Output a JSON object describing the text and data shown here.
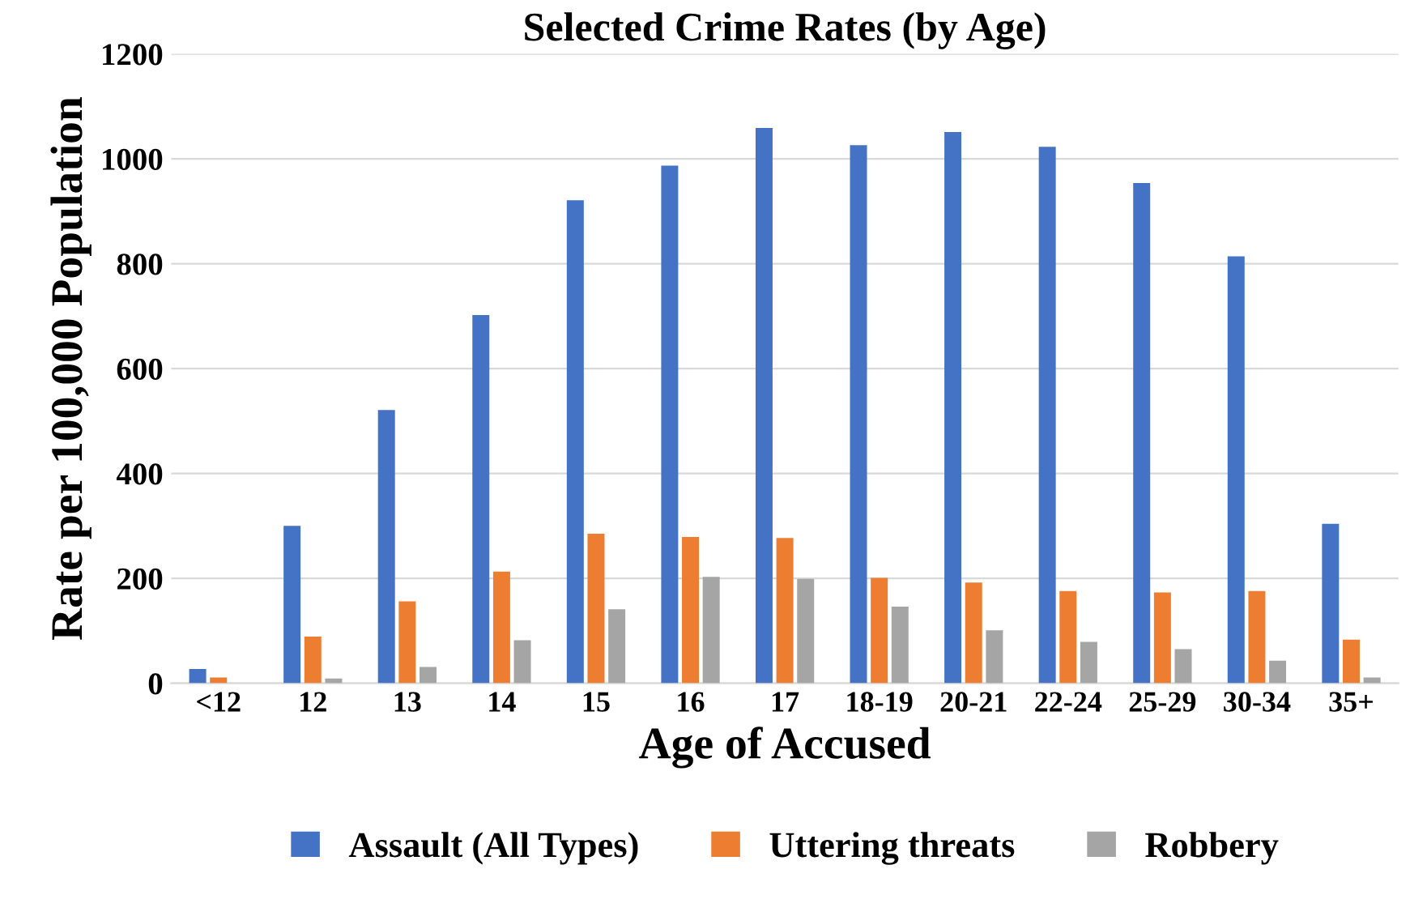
{
  "chart_data": {
    "type": "bar",
    "title": "Selected Crime Rates (by Age)",
    "xlabel": "Age of Accused",
    "ylabel": "Rate per 100,000 Population",
    "categories": [
      "<12",
      "12",
      "13",
      "14",
      "15",
      "16",
      "17",
      "18-19",
      "20-21",
      "22-24",
      "25-29",
      "30-34",
      "35+"
    ],
    "series": [
      {
        "name": "Assault (All Types)",
        "color": "#4472c4",
        "values": [
          27,
          300,
          521,
          702,
          921,
          987,
          1059,
          1026,
          1051,
          1023,
          954,
          814,
          304
        ]
      },
      {
        "name": "Uttering threats",
        "color": "#ed7d31",
        "values": [
          11,
          89,
          156,
          213,
          285,
          279,
          277,
          201,
          192,
          176,
          173,
          176,
          83
        ]
      },
      {
        "name": "Robbery",
        "color": "#a5a5a5",
        "values": [
          0,
          9,
          31,
          82,
          141,
          203,
          199,
          146,
          101,
          79,
          65,
          43,
          11
        ]
      }
    ],
    "ylim": [
      0,
      1200
    ],
    "yticks": [
      0,
      200,
      400,
      600,
      800,
      1000,
      1200
    ],
    "grid": "y",
    "legend": "bottom"
  }
}
